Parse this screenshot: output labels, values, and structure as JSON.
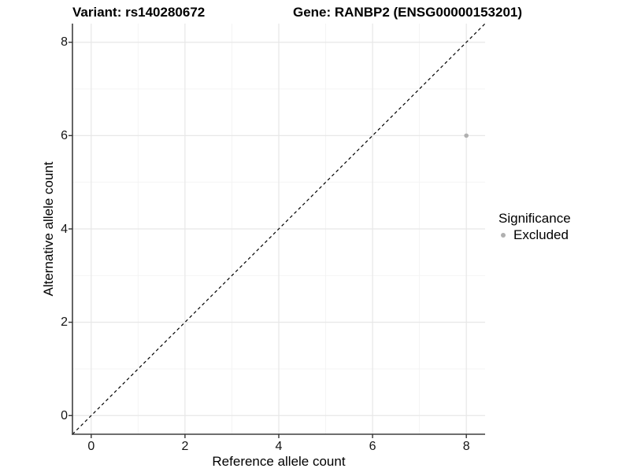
{
  "titles": {
    "left": "Variant: rs140280672",
    "right": "Gene: RANBP2 (ENSG00000153201)"
  },
  "chart_data": {
    "type": "scatter",
    "title_left": "Variant: rs140280672",
    "title_right": "Gene: RANBP2 (ENSG00000153201)",
    "xlabel": "Reference allele count",
    "ylabel": "Alternative allele count",
    "xlim": [
      -0.4,
      8.4
    ],
    "ylim": [
      -0.4,
      8.4
    ],
    "ticks": [
      0,
      2,
      4,
      6,
      8
    ],
    "minor_ticks": [
      1,
      3,
      5,
      7
    ],
    "grid": "on",
    "points": [
      {
        "x": 8,
        "y": 6,
        "significance": "Excluded"
      }
    ],
    "identity_line": {
      "style": "dashed",
      "from": -0.4,
      "to": 8.4,
      "color": "#000000"
    },
    "legend": {
      "position": "right",
      "title": "Significance",
      "items": [
        {
          "label": "Excluded",
          "color": "#b0b0b0"
        }
      ]
    }
  }
}
